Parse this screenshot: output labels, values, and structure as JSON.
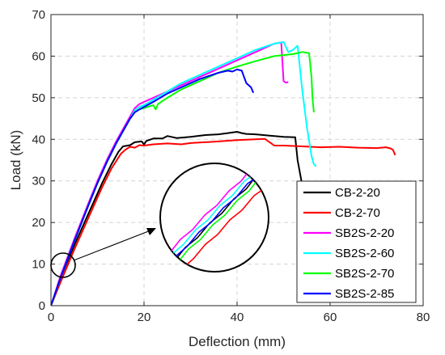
{
  "chart_data": {
    "type": "line",
    "xlabel": "Deflection (mm)",
    "ylabel": "Load (kN)",
    "xlim": [
      0,
      80
    ],
    "ylim": [
      0,
      70
    ],
    "xticks": [
      0,
      20,
      40,
      60,
      80
    ],
    "yticks": [
      0,
      10,
      20,
      30,
      40,
      50,
      60,
      70
    ],
    "grid": true,
    "legend_position": "bottom-right",
    "series": [
      {
        "name": "CB-2-20",
        "color": "#000000",
        "x": [
          0,
          2,
          5,
          8,
          11,
          13,
          14.5,
          15.5,
          17,
          18,
          19.5,
          20,
          20.5,
          22,
          24,
          25,
          27,
          30,
          33,
          36,
          38,
          40,
          41,
          42,
          44,
          47,
          50,
          52.5,
          53,
          54
        ],
        "y": [
          0,
          6.5,
          14.5,
          22,
          29.5,
          34,
          37,
          38.3,
          38.6,
          39.3,
          39.5,
          38.8,
          39.6,
          40.2,
          40.2,
          40.8,
          40.3,
          40.6,
          41,
          41.2,
          41.5,
          41.8,
          41.5,
          41.3,
          41.2,
          40.9,
          40.6,
          40.5,
          35,
          29
        ]
      },
      {
        "name": "CB-2-70",
        "color": "#ff0000",
        "x": [
          0,
          2,
          5,
          8,
          11,
          13,
          15,
          16,
          17,
          18,
          19,
          20,
          22,
          25,
          28,
          30,
          33,
          36,
          40,
          44,
          46,
          47,
          48,
          50,
          54,
          58,
          62,
          66,
          70,
          72,
          73,
          73.5,
          74
        ],
        "y": [
          0,
          5.5,
          13.5,
          21,
          28.5,
          33,
          36.5,
          37.5,
          38.2,
          38,
          38.6,
          38.5,
          38.8,
          39,
          38.8,
          39.1,
          39.3,
          39.5,
          39.8,
          40,
          40.1,
          39.3,
          38.5,
          38.5,
          38.3,
          38.1,
          38.2,
          38,
          37.9,
          38.1,
          37.8,
          37.5,
          36.2
        ]
      },
      {
        "name": "SB2S-2-20",
        "color": "#ff00ff",
        "x": [
          0,
          2,
          5,
          8,
          10,
          12,
          14,
          16,
          17,
          18,
          19,
          20,
          21,
          22,
          25,
          28,
          32,
          36,
          40,
          44,
          48,
          49.5,
          50,
          50.5,
          51
        ],
        "y": [
          0,
          7,
          16,
          24.5,
          30,
          35,
          39.5,
          43.5,
          45.5,
          47.5,
          48.5,
          49,
          49.5,
          50,
          51.5,
          53,
          55,
          57,
          59,
          61,
          63,
          63.3,
          54,
          53.6,
          53.8
        ]
      },
      {
        "name": "SB2S-2-60",
        "color": "#00ffff",
        "x": [
          0,
          2,
          5,
          8,
          10,
          12,
          14,
          16,
          17,
          18,
          19,
          20,
          22,
          25,
          28,
          32,
          36,
          40,
          44,
          48,
          50,
          51,
          52,
          53,
          54,
          55,
          56,
          56.5,
          57
        ],
        "y": [
          0,
          6.5,
          15.5,
          24,
          29.5,
          34.5,
          39,
          43,
          45,
          47,
          47.8,
          48.2,
          49.5,
          51.5,
          53.5,
          55.5,
          57.5,
          59.5,
          61.5,
          63,
          63.4,
          61,
          61.5,
          62.5,
          52,
          43,
          36,
          34,
          33.5
        ]
      },
      {
        "name": "SB2S-2-70",
        "color": "#00ff00",
        "x": [
          0,
          2,
          5,
          8,
          10,
          12,
          14,
          16,
          17,
          18,
          19,
          20,
          21,
          22,
          22.5,
          23,
          25,
          28,
          32,
          36,
          40,
          44,
          48,
          52,
          54,
          55.5,
          56,
          56.2,
          56.5
        ],
        "y": [
          0,
          6.5,
          15.5,
          24,
          29.5,
          34.5,
          39,
          43,
          45,
          46.5,
          47.2,
          47.5,
          47.9,
          48.2,
          47.2,
          48.5,
          50,
          52,
          54,
          56,
          57.5,
          58.8,
          60,
          60.5,
          61,
          60.7,
          55,
          50,
          46.5
        ]
      },
      {
        "name": "SB2S-2-85",
        "color": "#0000ff",
        "x": [
          0,
          2,
          5,
          8,
          10,
          12,
          14,
          16,
          17,
          18,
          19,
          20,
          22,
          25,
          28,
          32,
          36,
          38,
          39,
          40,
          41,
          41.5,
          42,
          43,
          43.5
        ],
        "y": [
          0,
          6.5,
          15.5,
          24,
          29.5,
          34.5,
          39,
          43,
          45,
          46.5,
          47.2,
          47.8,
          49,
          51,
          52.5,
          54.5,
          56,
          56.5,
          56.3,
          56.8,
          56.5,
          55,
          53.5,
          52.5,
          51.2
        ]
      }
    ]
  }
}
